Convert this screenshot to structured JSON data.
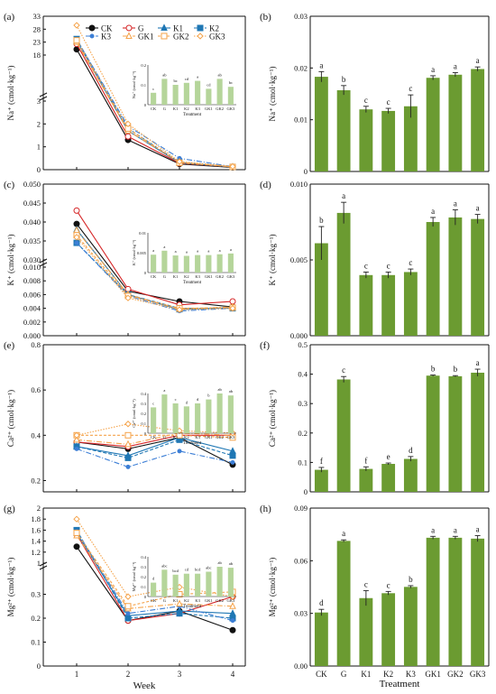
{
  "colors": {
    "bar": "#6b9b31",
    "bar_light": "#b5d59a",
    "err": "#222222",
    "series": [
      "#111111",
      "#d62728",
      "#1f77b4",
      "#1f77b4",
      "#3d7fd6",
      "#f5a34a",
      "#f5a34a",
      "#f5a34a"
    ]
  },
  "treatments": [
    "CK",
    "G",
    "K1",
    "K2",
    "K3",
    "GK1",
    "GK2",
    "GK3"
  ],
  "legend": {
    "items": [
      {
        "name": "CK",
        "marker": "filled-circle",
        "dash": "solid"
      },
      {
        "name": "G",
        "marker": "open-circle",
        "dash": "solid"
      },
      {
        "name": "K1",
        "marker": "triangle",
        "dash": "solid"
      },
      {
        "name": "K2",
        "marker": "square",
        "dash": "dash"
      },
      {
        "name": "K3",
        "marker": "dot",
        "dash": "dashdot"
      },
      {
        "name": "GK1",
        "marker": "open-triangle",
        "dash": "dashdot"
      },
      {
        "name": "GK2",
        "marker": "open-square",
        "dash": "dash"
      },
      {
        "name": "GK3",
        "marker": "open-diamond",
        "dash": "dot"
      }
    ]
  },
  "chart_data": [
    {
      "panel": "(a)",
      "type": "line",
      "xlabel": "",
      "ylabel": "Na⁺ (cmol·kg⁻¹)",
      "x": [
        1,
        2,
        3,
        4
      ],
      "ylim_break": {
        "lower": [
          0,
          3
        ],
        "upper": [
          3,
          33
        ]
      },
      "yticks_lower": [
        0,
        1,
        2,
        3
      ],
      "yticks_upper": [
        18,
        23,
        28,
        33
      ],
      "series": [
        {
          "name": "CK",
          "values": [
            20.2,
            1.3,
            0.25,
            0.1
          ]
        },
        {
          "name": "G",
          "values": [
            22.3,
            1.45,
            0.28,
            0.12
          ]
        },
        {
          "name": "K1",
          "values": [
            23.5,
            1.7,
            0.3,
            0.12
          ]
        },
        {
          "name": "K2",
          "values": [
            24.2,
            1.8,
            0.32,
            0.12
          ]
        },
        {
          "name": "K3",
          "values": [
            24.0,
            1.9,
            0.5,
            0.13
          ]
        },
        {
          "name": "GK1",
          "values": [
            23.0,
            1.7,
            0.33,
            0.12
          ]
        },
        {
          "name": "GK2",
          "values": [
            23.7,
            1.8,
            0.3,
            0.12
          ]
        },
        {
          "name": "GK3",
          "values": [
            29.5,
            2.0,
            0.35,
            0.14
          ]
        }
      ],
      "inset": {
        "ylabel": "Na⁺ (cmol·kg⁻¹)",
        "xlabel": "Treatment",
        "yticks": [
          0.0,
          0.1,
          0.2
        ],
        "values": [
          0.06,
          0.13,
          0.1,
          0.11,
          0.12,
          0.08,
          0.13,
          0.09
        ],
        "labels": [
          "c",
          "ab",
          "bc",
          "cd",
          "a",
          "cd",
          "ab",
          "bc"
        ]
      }
    },
    {
      "panel": "(b)",
      "type": "bar",
      "xlabel": "",
      "ylabel": "Na⁺ (cmol·kg⁻¹)",
      "ylim": [
        0,
        0.03
      ],
      "yticks": [
        0.0,
        0.01,
        0.02,
        0.03
      ],
      "values": [
        0.0183,
        0.0157,
        0.012,
        0.0117,
        0.0126,
        0.0181,
        0.0187,
        0.0198
      ],
      "errors": [
        0.001,
        0.0009,
        0.0006,
        0.0005,
        0.0022,
        0.0004,
        0.0004,
        0.0004
      ],
      "labels": [
        "a",
        "b",
        "c",
        "c",
        "c",
        "a",
        "a",
        "a"
      ]
    },
    {
      "panel": "(c)",
      "type": "line",
      "xlabel": "",
      "ylabel": "K⁺ (cmol·kg⁻¹)",
      "x": [
        1,
        2,
        3,
        4
      ],
      "ylim_break": {
        "lower": [
          0,
          0.01
        ],
        "upper": [
          0.03,
          0.05
        ]
      },
      "yticks_lower": [
        "0.000",
        "0.002",
        "0.004",
        "0.006",
        "0.008",
        "0.010"
      ],
      "yticks_upper": [
        "0.030",
        "0.035",
        "0.040",
        "0.045",
        "0.050"
      ],
      "series": [
        {
          "name": "CK",
          "values": [
            0.0395,
            0.0065,
            0.005,
            0.0042
          ]
        },
        {
          "name": "G",
          "values": [
            0.043,
            0.0068,
            0.0045,
            0.005
          ]
        },
        {
          "name": "K1",
          "values": [
            0.038,
            0.006,
            0.0038,
            0.0041
          ]
        },
        {
          "name": "K2",
          "values": [
            0.0345,
            0.006,
            0.004,
            0.004
          ]
        },
        {
          "name": "K3",
          "values": [
            0.0345,
            0.0058,
            0.0036,
            0.004
          ]
        },
        {
          "name": "GK1",
          "values": [
            0.0378,
            0.006,
            0.0039,
            0.0042
          ]
        },
        {
          "name": "GK2",
          "values": [
            0.0365,
            0.0058,
            0.004,
            0.0041
          ]
        },
        {
          "name": "GK3",
          "values": [
            0.036,
            0.0055,
            0.0038,
            0.004
          ]
        }
      ],
      "inset": {
        "ylabel": "K⁺ (cmol·kg⁻¹)",
        "xlabel": "Treatment",
        "yticks": [
          0.0,
          0.005,
          0.01
        ],
        "values": [
          0.0045,
          0.0055,
          0.0043,
          0.0042,
          0.0044,
          0.0044,
          0.0046,
          0.0048
        ],
        "labels": [
          "a",
          "a",
          "a",
          "a",
          "a",
          "a",
          "a",
          "a"
        ]
      }
    },
    {
      "panel": "(d)",
      "type": "bar",
      "xlabel": "",
      "ylabel": "K⁺ (cmol·kg⁻¹)",
      "ylim": [
        0,
        0.01
      ],
      "yticks": [
        "0.000",
        "0.005",
        "0.010"
      ],
      "values": [
        0.0061,
        0.0081,
        0.004,
        0.004,
        0.0042,
        0.0075,
        0.0078,
        0.0077
      ],
      "errors": [
        0.0011,
        0.0007,
        0.0002,
        0.0002,
        0.0002,
        0.0003,
        0.0005,
        0.0003
      ],
      "labels": [
        "b",
        "a",
        "c",
        "c",
        "c",
        "a",
        "a",
        "a"
      ]
    },
    {
      "panel": "(e)",
      "type": "line",
      "xlabel": "",
      "ylabel": "Ca²⁺ (cmol·kg⁻¹)",
      "x": [
        1,
        2,
        3,
        4
      ],
      "ylim": [
        0.15,
        0.8
      ],
      "yticks": [
        0.2,
        0.4,
        0.6,
        0.8
      ],
      "series": [
        {
          "name": "CK",
          "values": [
            0.37,
            0.34,
            0.39,
            0.27
          ]
        },
        {
          "name": "G",
          "values": [
            0.37,
            0.35,
            0.4,
            0.4
          ]
        },
        {
          "name": "K1",
          "values": [
            0.35,
            0.31,
            0.39,
            0.33
          ]
        },
        {
          "name": "K2",
          "values": [
            0.35,
            0.3,
            0.38,
            0.31
          ]
        },
        {
          "name": "K3",
          "values": [
            0.34,
            0.26,
            0.33,
            0.28
          ]
        },
        {
          "name": "GK1",
          "values": [
            0.38,
            0.36,
            0.41,
            0.4
          ]
        },
        {
          "name": "GK2",
          "values": [
            0.4,
            0.4,
            0.4,
            0.39
          ]
        },
        {
          "name": "GK3",
          "values": [
            0.4,
            0.45,
            0.42,
            0.41
          ]
        }
      ],
      "inset": {
        "ylabel": "Ca²⁺ (cmol·kg⁻¹)",
        "xlabel": "Treatment",
        "yticks": [
          0.0,
          0.1,
          0.2,
          0.3,
          0.4
        ],
        "values": [
          0.26,
          0.39,
          0.3,
          0.27,
          0.3,
          0.34,
          0.4,
          0.38
        ],
        "labels": [
          "c",
          "a",
          "c",
          "d",
          "d",
          "b",
          "ab",
          "ab"
        ]
      }
    },
    {
      "panel": "(f)",
      "type": "bar",
      "xlabel": "",
      "ylabel": "Ca²⁺ (cmol·kg⁻¹)",
      "ylim": [
        0,
        0.5
      ],
      "yticks": [
        0.0,
        0.1,
        0.2,
        0.3,
        0.4,
        0.5
      ],
      "values": [
        0.075,
        0.382,
        0.078,
        0.095,
        0.112,
        0.395,
        0.393,
        0.405
      ],
      "errors": [
        0.008,
        0.01,
        0.007,
        0.003,
        0.008,
        0.002,
        0.002,
        0.012
      ],
      "labels": [
        "f",
        "c",
        "f",
        "e",
        "d",
        "b",
        "b",
        "a"
      ]
    },
    {
      "panel": "(g)",
      "type": "line",
      "xlabel": "Week",
      "ylabel": "Mg²⁺ (cmol·kg⁻¹)",
      "x": [
        1,
        2,
        3,
        4
      ],
      "ylim_break": {
        "lower": [
          0,
          0.4
        ],
        "upper": [
          1.0,
          2.0
        ]
      },
      "yticks_lower": [
        0.0,
        0.1,
        0.2,
        0.3
      ],
      "yticks_upper": [
        1.0,
        1.2,
        1.4,
        1.6,
        1.8,
        2.0
      ],
      "series": [
        {
          "name": "CK",
          "values": [
            1.3,
            0.19,
            0.23,
            0.15
          ]
        },
        {
          "name": "G",
          "values": [
            1.52,
            0.19,
            0.22,
            0.29
          ]
        },
        {
          "name": "K1",
          "values": [
            1.55,
            0.21,
            0.23,
            0.22
          ]
        },
        {
          "name": "K2",
          "values": [
            1.6,
            0.2,
            0.22,
            0.2
          ]
        },
        {
          "name": "K3",
          "values": [
            1.58,
            0.22,
            0.25,
            0.19
          ]
        },
        {
          "name": "GK1",
          "values": [
            1.5,
            0.24,
            0.26,
            0.25
          ]
        },
        {
          "name": "GK2",
          "values": [
            1.55,
            0.25,
            0.3,
            0.31
          ]
        },
        {
          "name": "GK3",
          "values": [
            1.8,
            0.29,
            0.33,
            0.29
          ]
        }
      ],
      "inset": {
        "ylabel": "Mg²⁺ (cmol·kg⁻¹)",
        "xlabel": "Treatment",
        "yticks": [
          0.0,
          0.1,
          0.2,
          0.3,
          0.4
        ],
        "values": [
          0.14,
          0.27,
          0.22,
          0.23,
          0.23,
          0.25,
          0.3,
          0.29
        ],
        "labels": [
          "d",
          "abc",
          "bcd",
          "cd",
          "bcd",
          "abc",
          "ab",
          "ab"
        ]
      }
    },
    {
      "panel": "(h)",
      "type": "bar",
      "xlabel": "Treatment",
      "ylabel": "Mg²⁺ (cmol·kg⁻¹)",
      "ylim": [
        0,
        0.09
      ],
      "yticks": [
        "0.00",
        "0.03",
        "0.06",
        "0.09"
      ],
      "values": [
        0.0305,
        0.0713,
        0.0387,
        0.0415,
        0.0451,
        0.0731,
        0.0731,
        0.0726
      ],
      "errors": [
        0.0018,
        0.0006,
        0.0043,
        0.001,
        0.0007,
        0.0008,
        0.0008,
        0.0017
      ],
      "labels": [
        "d",
        "a",
        "c",
        "c",
        "b",
        "a",
        "a",
        "a"
      ]
    }
  ]
}
